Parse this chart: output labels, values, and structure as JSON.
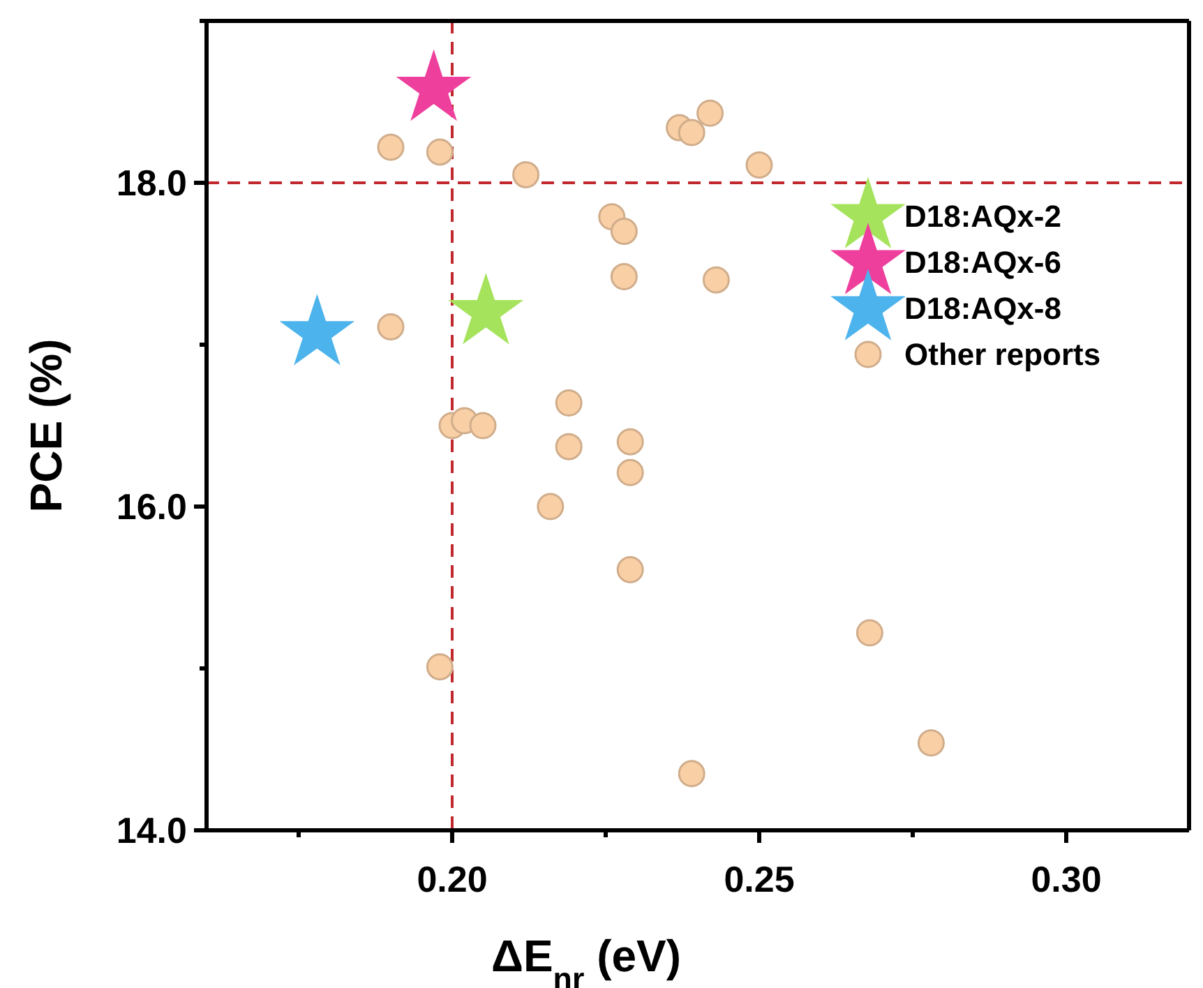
{
  "chart_data": {
    "type": "scatter",
    "xlabel": "ΔE$_{nr}$ (eV)",
    "ylabel": "PCE (%)",
    "xlim": [
      0.16,
      0.32
    ],
    "ylim": [
      14,
      19
    ],
    "xticks": [
      {
        "value": 0.175,
        "label": null
      },
      {
        "value": 0.2,
        "label": "0.20"
      },
      {
        "value": 0.225,
        "label": null
      },
      {
        "value": 0.25,
        "label": "0.25"
      },
      {
        "value": 0.275,
        "label": null
      },
      {
        "value": 0.3,
        "label": "0.30"
      }
    ],
    "yticks": [
      {
        "value": 14,
        "label": "14.0"
      },
      {
        "value": 15,
        "label": null
      },
      {
        "value": 16,
        "label": "16.0"
      },
      {
        "value": 17,
        "label": null
      },
      {
        "value": 18,
        "label": "18.0"
      },
      {
        "value": 19,
        "label": null
      }
    ],
    "grid": false,
    "legend": "top right",
    "ref_lines": [
      {
        "axis": "x",
        "value": 0.2,
        "color": "#c0282d",
        "line_style": "dashed"
      },
      {
        "axis": "y",
        "value": 18,
        "color": "#c0282d",
        "line_style": "dashed"
      }
    ],
    "series": [
      {
        "name": "D18:AQx-2",
        "color": "#a6e35c",
        "marker": "star",
        "x": [
          0.2055
        ],
        "values": [
          17.2
        ]
      },
      {
        "name": "D18:AQx-6",
        "color": "#ee3f9c",
        "marker": "star",
        "x": [
          0.197
        ],
        "values": [
          18.58
        ]
      },
      {
        "name": "D18:AQx-8",
        "color": "#4db3ec",
        "marker": "star",
        "x": [
          0.178
        ],
        "values": [
          17.07
        ]
      },
      {
        "name": "Other reports",
        "color": "#f9cfa6",
        "marker": "circle",
        "x": [
          0.19,
          0.198,
          0.212,
          0.237,
          0.239,
          0.242,
          0.25,
          0.226,
          0.228,
          0.228,
          0.243,
          0.19,
          0.219,
          0.2,
          0.202,
          0.205,
          0.219,
          0.229,
          0.229,
          0.216,
          0.229,
          0.198,
          0.268,
          0.239,
          0.278
        ],
        "values": [
          18.22,
          18.19,
          18.05,
          18.34,
          18.31,
          18.43,
          18.11,
          17.79,
          17.7,
          17.42,
          17.4,
          17.11,
          16.64,
          16.5,
          16.53,
          16.5,
          16.37,
          16.4,
          16.21,
          16.0,
          15.61,
          15.01,
          15.22,
          14.35,
          14.54
        ]
      }
    ]
  }
}
